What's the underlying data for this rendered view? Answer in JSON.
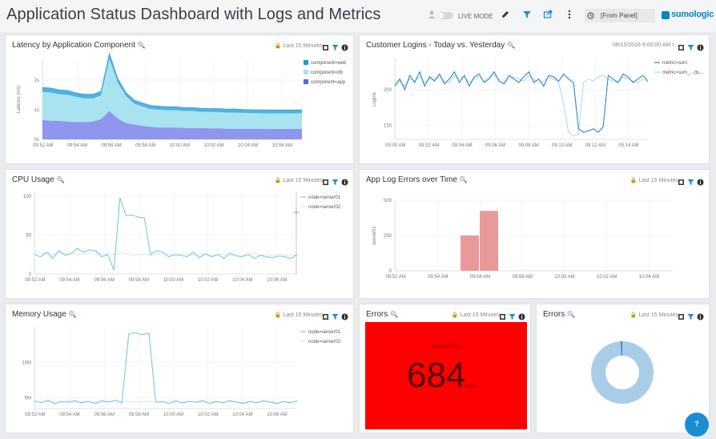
{
  "header": {
    "title": "Application Status Dashboard with Logs and Metrics",
    "live_mode_label": "LIVE MODE",
    "panel_select_value": "[From Panel]",
    "logo_text": "sumologic",
    "icons": [
      "user-icon",
      "pencil-icon",
      "filter-icon",
      "share-icon",
      "more-icon",
      "clock-icon"
    ]
  },
  "panels": {
    "latency": {
      "title": "Latency by Application Component",
      "time_range": "Last 15 Minutes"
    },
    "logins": {
      "title": "Customer Logins - Today vs. Yesterday",
      "time_range": "08/10/2016 9:00:00 AM t..."
    },
    "cpu": {
      "title": "CPU Usage",
      "time_range": "Last 15 Minutes"
    },
    "app_errors": {
      "title": "App Log Errors over Time",
      "time_range": "Last 15 Minutes"
    },
    "memory": {
      "title": "Memory Usage",
      "time_range": "Last 15 Minutes"
    },
    "errors_single": {
      "title": "Errors",
      "time_range": "Last 15 Minutes",
      "label": "System Errors",
      "value": "684",
      "unit": "errors"
    },
    "errors_donut": {
      "title": "Errors",
      "time_range": "Last 15 Minutes"
    }
  },
  "colors": {
    "accent": "#0084c8",
    "series_dark": "#2e86c8",
    "series_light": "#a8d8ea",
    "area_db": "#a9e3f0",
    "area_app": "#8f96ee",
    "bar": "#e89a9a",
    "error_bg": "#ff0000",
    "donut": "#a9cde6"
  },
  "chart_data": [
    {
      "id": "latency",
      "type": "area",
      "ylabel": "Latency (ms)",
      "y_ticks": [
        "0s",
        "1s",
        "2s"
      ],
      "ylim": [
        0,
        2.7
      ],
      "x_ticks": [
        "09:52 AM",
        "09:54 AM",
        "09:56 AM",
        "09:58 AM",
        "10:00 AM",
        "10:02 AM",
        "10:04 AM",
        "10:06 AM"
      ],
      "legend": [
        "component=web",
        "component=db",
        "component=app"
      ],
      "legend_position": "right",
      "series": [
        {
          "name": "component=app",
          "values": [
            0.65,
            0.63,
            0.62,
            0.6,
            0.58,
            0.58,
            0.6,
            0.68,
            0.95,
            0.7,
            0.55,
            0.5,
            0.45,
            0.42,
            0.4,
            0.4,
            0.4,
            0.38,
            0.38,
            0.38,
            0.37,
            0.37,
            0.36,
            0.36,
            0.36,
            0.36,
            0.36,
            0.35,
            0.35,
            0.35,
            0.35,
            0.35
          ]
        },
        {
          "name": "component=db",
          "values": [
            0.95,
            0.95,
            0.9,
            0.9,
            0.85,
            0.8,
            0.78,
            0.8,
            1.75,
            1.2,
            0.9,
            0.7,
            0.65,
            0.6,
            0.6,
            0.58,
            0.58,
            0.57,
            0.57,
            0.55,
            0.55,
            0.55,
            0.54,
            0.54,
            0.53,
            0.52,
            0.52,
            0.52,
            0.52,
            0.52,
            0.52,
            0.53
          ]
        },
        {
          "name": "component=web",
          "values": [
            0.15,
            0.15,
            0.15,
            0.15,
            0.14,
            0.14,
            0.14,
            0.14,
            0.2,
            0.15,
            0.12,
            0.12,
            0.12,
            0.12,
            0.12,
            0.12,
            0.12,
            0.12,
            0.12,
            0.12,
            0.12,
            0.12,
            0.12,
            0.12,
            0.12,
            0.12,
            0.12,
            0.12,
            0.12,
            0.12,
            0.12,
            0.12
          ]
        }
      ]
    },
    {
      "id": "logins",
      "type": "line",
      "ylabel": "Logins",
      "y_ticks": [
        "150",
        "200"
      ],
      "ylim": [
        130,
        245
      ],
      "x_ticks": [
        "09:00 AM",
        "09:02 AM",
        "09:04 AM",
        "09:06 AM",
        "09:08 AM",
        "09:10 AM",
        "09:12 AM",
        "09:14 AM"
      ],
      "legend": [
        "metric=sum",
        "metric=sum_...(ts..."
      ],
      "legend_position": "right",
      "series": [
        {
          "name": "metric=sum",
          "values": [
            205,
            215,
            200,
            220,
            210,
            225,
            205,
            218,
            212,
            222,
            208,
            215,
            225,
            210,
            220,
            205,
            218,
            222,
            210,
            215,
            225,
            212,
            208,
            220,
            215,
            210,
            218,
            225,
            210,
            215,
            205,
            220,
            218,
            212,
            222,
            215,
            210,
            145,
            140,
            142,
            145,
            140,
            148,
            220,
            215,
            210,
            222,
            218,
            210,
            215,
            220,
            212
          ]
        },
        {
          "name": "metric=sum_...(ts...",
          "values": [
            210,
            212,
            205,
            215,
            212,
            218,
            210,
            215,
            215,
            218,
            212,
            210,
            220,
            215,
            218,
            210,
            215,
            218,
            212,
            218,
            220,
            215,
            210,
            215,
            218,
            215,
            212,
            220,
            215,
            210,
            212,
            218,
            215,
            210,
            180,
            140,
            135,
            138,
            210,
            215,
            212,
            218,
            220,
            215,
            212,
            210,
            218,
            215,
            212,
            210,
            215,
            210
          ]
        }
      ]
    },
    {
      "id": "cpu",
      "type": "line",
      "y_ticks": [
        "0",
        "50",
        "100"
      ],
      "ylim": [
        0,
        105
      ],
      "x_ticks": [
        "09:52 AM",
        "09:54 AM",
        "09:56 AM",
        "09:58 AM",
        "10:00 AM",
        "10:02 AM",
        "10:04 AM",
        "10:06 AM"
      ],
      "legend": [
        "node=server01",
        "node=server02"
      ],
      "legend_position": "right",
      "series": [
        {
          "name": "node=server01",
          "values": [
            25,
            22,
            28,
            20,
            30,
            24,
            26,
            33,
            28,
            31,
            30,
            22,
            25,
            5,
            98,
            75,
            76,
            73,
            72,
            25,
            30,
            28,
            22,
            25,
            24,
            22,
            28,
            21,
            26,
            22,
            25,
            20,
            27,
            23,
            22,
            25,
            20,
            24,
            22,
            21,
            23,
            22,
            20,
            25
          ]
        },
        {
          "name": "node=server02",
          "values": [
            28,
            26,
            27,
            25,
            28,
            26,
            27,
            25,
            26,
            27,
            28,
            25,
            26,
            25,
            27,
            26,
            24,
            25,
            26,
            24,
            25,
            26,
            25,
            24,
            26,
            25,
            24,
            26,
            25,
            24,
            25,
            26,
            24,
            25,
            24,
            25,
            26,
            24,
            25,
            24,
            25,
            24,
            25,
            24
          ]
        }
      ]
    },
    {
      "id": "app_errors",
      "type": "bar",
      "ylabel": "server01",
      "y_ticks": [
        "0",
        "250",
        "500"
      ],
      "ylim": [
        0,
        500
      ],
      "x_ticks": [
        "09:52 AM",
        "09:54 AM",
        "09:56 AM",
        "09:58 AM",
        "10:00 AM",
        "10:02 AM",
        "10:04 AM"
      ],
      "bars": [
        {
          "at": "09:55 AM",
          "value": 250
        },
        {
          "at": "09:56 AM",
          "value": 425
        }
      ]
    },
    {
      "id": "memory",
      "type": "line",
      "y_ticks": [
        "5M",
        "10M"
      ],
      "ylim": [
        3.5,
        15
      ],
      "x_ticks": [
        "09:52 AM",
        "09:54 AM",
        "09:56 AM",
        "09:58 AM",
        "10:00 AM",
        "10:02 AM",
        "10:04 AM",
        "10:06 AM"
      ],
      "legend": [
        "node=server01",
        "node=server02"
      ],
      "legend_position": "right",
      "series": [
        {
          "name": "node=server01",
          "values": [
            4.6,
            4.3,
            4.7,
            4.2,
            4.5,
            4.4,
            4.6,
            4.3,
            4.5,
            4.2,
            4.6,
            4.4,
            4.7,
            4.3,
            14.0,
            14.2,
            13.9,
            14.1,
            4.4,
            4.5,
            4.2,
            4.6,
            4.3,
            4.5,
            4.4,
            4.6,
            4.2,
            4.5,
            4.3,
            4.6,
            4.4,
            4.2,
            4.5,
            4.3,
            4.6,
            4.4,
            4.2,
            4.5,
            4.3,
            4.6
          ]
        },
        {
          "name": "node=server02",
          "values": [
            4.4,
            4.4,
            4.5,
            4.4,
            4.4,
            4.5,
            4.4,
            4.4,
            4.5,
            4.4,
            4.4,
            4.5,
            4.4,
            4.4,
            4.5,
            4.4,
            4.4,
            4.5,
            4.4,
            4.4,
            4.5,
            4.4,
            4.4,
            4.5,
            4.4,
            4.4,
            4.5,
            4.4,
            4.4,
            4.5,
            4.4,
            4.4,
            4.5,
            4.4,
            4.4,
            4.5,
            4.4,
            4.4,
            4.5,
            4.4
          ]
        }
      ]
    },
    {
      "id": "errors_donut",
      "type": "pie",
      "slices": [
        {
          "value": 99
        },
        {
          "value": 1
        }
      ]
    }
  ]
}
